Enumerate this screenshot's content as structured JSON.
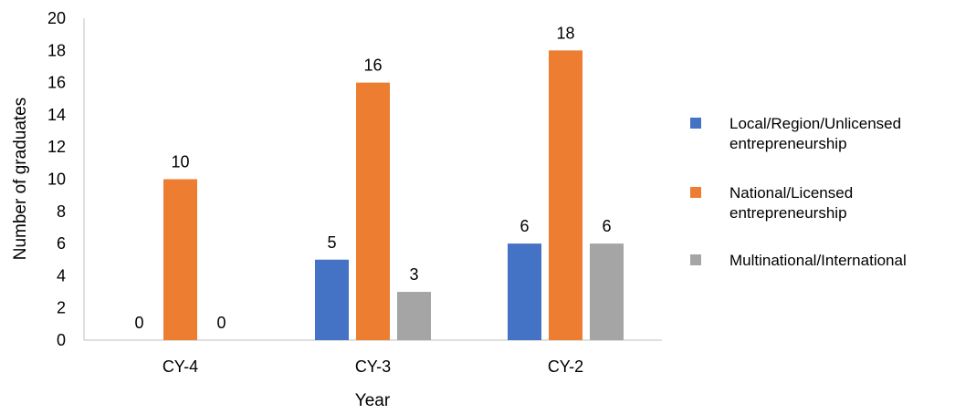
{
  "chart_data": {
    "type": "bar",
    "categories": [
      "CY-4",
      "CY-3",
      "CY-2"
    ],
    "series": [
      {
        "name": "Local/Region/Unlicensed entrepreneurship",
        "legend_lines": [
          "Local/Region/Unlicensed",
          "entrepreneurship"
        ],
        "color": "#4472C4",
        "values": [
          0,
          5,
          6
        ]
      },
      {
        "name": "National/Licensed entrepreneurship",
        "legend_lines": [
          "National/Licensed",
          "entrepreneurship"
        ],
        "color": "#ED7D31",
        "values": [
          10,
          16,
          18
        ]
      },
      {
        "name": "Multinational/International",
        "legend_lines": [
          "Multinational/International"
        ],
        "color": "#A5A5A5",
        "values": [
          0,
          3,
          6
        ]
      }
    ],
    "xlabel": "Year",
    "ylabel": "Number of graduates",
    "ylim": [
      0,
      20
    ],
    "yticks": [
      0,
      2,
      4,
      6,
      8,
      10,
      12,
      14,
      16,
      18,
      20
    ],
    "data_labels": true,
    "grid": false,
    "legend_position": "right"
  }
}
